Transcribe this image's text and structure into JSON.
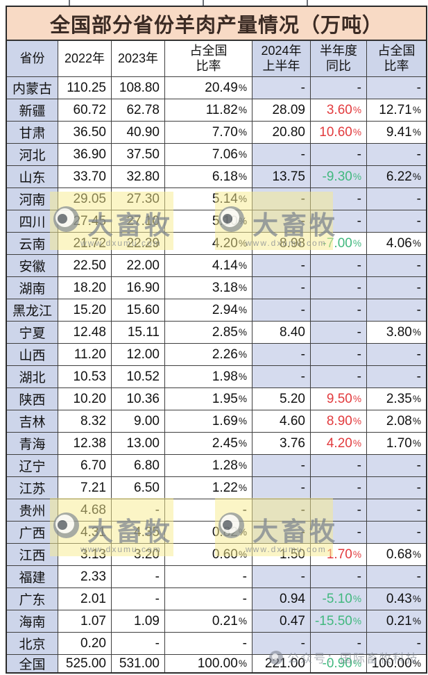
{
  "chart_data": {
    "type": "table",
    "title": "全国部分省份羊肉产量情况（万吨）",
    "columns": [
      {
        "l1": "省份",
        "l2": ""
      },
      {
        "l1": "2022年",
        "l2": ""
      },
      {
        "l1": "2023年",
        "l2": ""
      },
      {
        "l1": "占全国",
        "l2": "比率"
      },
      {
        "l1": "2024年",
        "l2": "上半年"
      },
      {
        "l1": "半年度",
        "l2": "同比"
      },
      {
        "l1": "占全国",
        "l2": "比率"
      }
    ],
    "rows": [
      {
        "province": "内蒙古",
        "y2022": "110.25",
        "y2023": "108.80",
        "share": "20.49%",
        "h1": "-",
        "yoy": "-",
        "yoy_color": null,
        "share2": "-",
        "shade_2024": false,
        "total": false
      },
      {
        "province": "新疆",
        "y2022": "60.72",
        "y2023": "62.78",
        "share": "11.82%",
        "h1": "28.09",
        "yoy": "3.60%",
        "yoy_color": "red",
        "share2": "12.71%",
        "shade_2024": false,
        "total": false
      },
      {
        "province": "甘肃",
        "y2022": "36.50",
        "y2023": "40.90",
        "share": "7.70%",
        "h1": "20.80",
        "yoy": "10.60%",
        "yoy_color": "red",
        "share2": "9.41%",
        "shade_2024": false,
        "total": false
      },
      {
        "province": "河北",
        "y2022": "36.90",
        "y2023": "37.50",
        "share": "7.06%",
        "h1": "-",
        "yoy": "-",
        "yoy_color": null,
        "share2": "-",
        "shade_2024": false,
        "total": false
      },
      {
        "province": "山东",
        "y2022": "33.70",
        "y2023": "32.80",
        "share": "6.18%",
        "h1": "13.75",
        "yoy": "-9.30%",
        "yoy_color": "green",
        "share2": "6.22%",
        "shade_2024": true,
        "total": false
      },
      {
        "province": "河南",
        "y2022": "29.05",
        "y2023": "27.30",
        "share": "5.14%",
        "h1": "-",
        "yoy": "-",
        "yoy_color": null,
        "share2": "-",
        "shade_2024": false,
        "total": false
      },
      {
        "province": "四川",
        "y2022": "27.45",
        "y2023": "27.10",
        "share": "5.10%",
        "h1": "-",
        "yoy": "-",
        "yoy_color": null,
        "share2": "-",
        "shade_2024": false,
        "total": false
      },
      {
        "province": "云南",
        "y2022": "21.72",
        "y2023": "22.29",
        "share": "4.20%",
        "h1": "8.98",
        "yoy": "-7.00%",
        "yoy_color": "green",
        "share2": "4.06%",
        "shade_2024": false,
        "total": false
      },
      {
        "province": "安徽",
        "y2022": "22.50",
        "y2023": "22.00",
        "share": "4.14%",
        "h1": "-",
        "yoy": "-",
        "yoy_color": null,
        "share2": "-",
        "shade_2024": false,
        "total": false
      },
      {
        "province": "湖南",
        "y2022": "18.20",
        "y2023": "16.90",
        "share": "3.18%",
        "h1": "-",
        "yoy": "-",
        "yoy_color": null,
        "share2": "-",
        "shade_2024": false,
        "total": false
      },
      {
        "province": "黑龙江",
        "y2022": "15.20",
        "y2023": "15.60",
        "share": "2.94%",
        "h1": "-",
        "yoy": "-",
        "yoy_color": null,
        "share2": "-",
        "shade_2024": false,
        "total": false
      },
      {
        "province": "宁夏",
        "y2022": "12.48",
        "y2023": "15.11",
        "share": "2.85%",
        "h1": "8.40",
        "yoy": "-",
        "yoy_color": null,
        "share2": "3.80%",
        "shade_2024": false,
        "total": false
      },
      {
        "province": "山西",
        "y2022": "11.20",
        "y2023": "12.00",
        "share": "2.26%",
        "h1": "-",
        "yoy": "-",
        "yoy_color": null,
        "share2": "-",
        "shade_2024": false,
        "total": false
      },
      {
        "province": "湖北",
        "y2022": "10.53",
        "y2023": "10.52",
        "share": "1.98%",
        "h1": "-",
        "yoy": "-",
        "yoy_color": null,
        "share2": "-",
        "shade_2024": false,
        "total": false
      },
      {
        "province": "陕西",
        "y2022": "10.20",
        "y2023": "10.36",
        "share": "1.95%",
        "h1": "5.20",
        "yoy": "9.50%",
        "yoy_color": "red",
        "share2": "2.35%",
        "shade_2024": false,
        "total": false
      },
      {
        "province": "吉林",
        "y2022": "8.32",
        "y2023": "9.00",
        "share": "1.69%",
        "h1": "4.60",
        "yoy": "8.90%",
        "yoy_color": "red",
        "share2": "2.08%",
        "shade_2024": false,
        "total": false
      },
      {
        "province": "青海",
        "y2022": "12.38",
        "y2023": "13.00",
        "share": "2.45%",
        "h1": "3.76",
        "yoy": "4.20%",
        "yoy_color": "red",
        "share2": "1.70%",
        "shade_2024": false,
        "total": false
      },
      {
        "province": "辽宁",
        "y2022": "6.70",
        "y2023": "6.80",
        "share": "1.28%",
        "h1": "-",
        "yoy": "-",
        "yoy_color": null,
        "share2": "-",
        "shade_2024": false,
        "total": false
      },
      {
        "province": "江苏",
        "y2022": "7.21",
        "y2023": "6.50",
        "share": "1.22%",
        "h1": "-",
        "yoy": "-",
        "yoy_color": null,
        "share2": "-",
        "shade_2024": false,
        "total": false
      },
      {
        "province": "贵州",
        "y2022": "4.68",
        "y2023": "-",
        "share": "-",
        "h1": "-",
        "yoy": "-",
        "yoy_color": null,
        "share2": "-",
        "shade_2024": false,
        "total": false
      },
      {
        "province": "广西",
        "y2022": "4.31",
        "y2023": "4.35",
        "share": "0.82%",
        "h1": "-",
        "yoy": "-",
        "yoy_color": null,
        "share2": "-",
        "shade_2024": false,
        "total": false
      },
      {
        "province": "江西",
        "y2022": "3.13",
        "y2023": "3.20",
        "share": "0.60%",
        "h1": "1.50",
        "yoy": "1.70%",
        "yoy_color": "red",
        "share2": "0.68%",
        "shade_2024": false,
        "total": false
      },
      {
        "province": "福建",
        "y2022": "2.33",
        "y2023": "-",
        "share": "-",
        "h1": "-",
        "yoy": "-",
        "yoy_color": null,
        "share2": "-",
        "shade_2024": false,
        "total": false
      },
      {
        "province": "广东",
        "y2022": "2.01",
        "y2023": "-",
        "share": "-",
        "h1": "0.94",
        "yoy": "-5.10%",
        "yoy_color": "green",
        "share2": "0.43%",
        "shade_2024": true,
        "total": false
      },
      {
        "province": "海南",
        "y2022": "1.07",
        "y2023": "1.09",
        "share": "0.21%",
        "h1": "0.47",
        "yoy": "-15.50%",
        "yoy_color": "green",
        "share2": "0.21%",
        "shade_2024": true,
        "total": false
      },
      {
        "province": "北京",
        "y2022": "0.20",
        "y2023": "-",
        "share": "-",
        "h1": "-",
        "yoy": "-",
        "yoy_color": null,
        "share2": "-",
        "shade_2024": false,
        "total": false
      },
      {
        "province": "全国",
        "y2022": "525.00",
        "y2023": "531.00",
        "share": "100.00%",
        "h1": "221.00",
        "yoy": "-0.90%",
        "yoy_color": "green",
        "share2": "100.00%",
        "shade_2024": false,
        "total": true
      }
    ]
  },
  "watermarks": {
    "brand": "大畜牧",
    "url": "www.dxumu.com",
    "account": "公众号：国际畜牧科技"
  },
  "colors": {
    "title_bg": "#f8dac5",
    "title_text": "#3b2b24",
    "header_blue": "#cdd5ea",
    "shaded_cell_blue": "#d5dbee",
    "positive_red": "#e23b3e",
    "negative_green": "#41b87f",
    "watermark_yellow": "#f6ec8e",
    "grid_line": "#3e3e3e"
  }
}
